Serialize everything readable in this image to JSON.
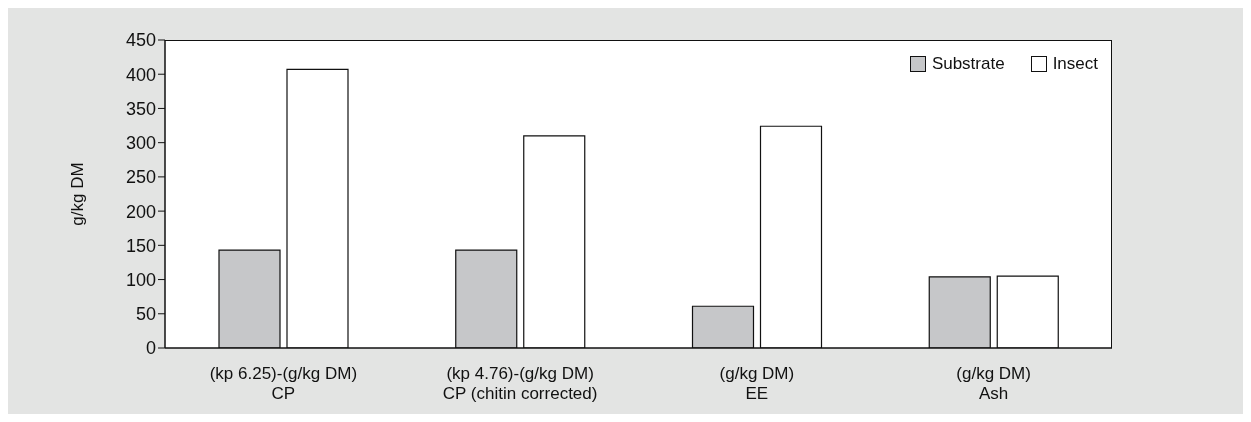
{
  "chart_data": {
    "type": "bar",
    "ylabel": "g/kg DM",
    "categories": [
      "(kp 6.25)-(g/kg DM)\nCP",
      "(kp 4.76)-(g/kg DM)\nCP (chitin corrected)",
      "(g/kg DM)\nEE",
      "(g/kg DM)\nAsh"
    ],
    "series": [
      {
        "name": "Substrate",
        "color": "#c6c7c9",
        "values": [
          143,
          143,
          61,
          104
        ]
      },
      {
        "name": "Insect",
        "color": "#ffffff",
        "values": [
          407,
          310,
          324,
          105
        ]
      }
    ],
    "ylim": [
      0,
      450
    ],
    "yticks": [
      0,
      50,
      100,
      150,
      200,
      250,
      300,
      350,
      400,
      450
    ],
    "grid": false,
    "legend": "top right"
  }
}
